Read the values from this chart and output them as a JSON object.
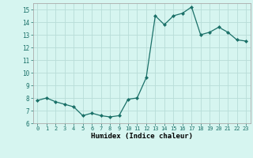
{
  "x": [
    0,
    1,
    2,
    3,
    4,
    5,
    6,
    7,
    8,
    9,
    10,
    11,
    12,
    13,
    14,
    15,
    16,
    17,
    18,
    19,
    20,
    21,
    22,
    23
  ],
  "y": [
    7.8,
    8.0,
    7.7,
    7.5,
    7.3,
    6.6,
    6.8,
    6.6,
    6.5,
    6.6,
    7.9,
    8.0,
    9.6,
    14.5,
    13.8,
    14.5,
    14.7,
    15.2,
    13.0,
    13.2,
    13.6,
    13.2,
    12.6,
    12.5
  ],
  "xlim": [
    -0.5,
    23.5
  ],
  "ylim": [
    6,
    15.5
  ],
  "yticks": [
    6,
    7,
    8,
    9,
    10,
    11,
    12,
    13,
    14,
    15
  ],
  "xticks": [
    0,
    1,
    2,
    3,
    4,
    5,
    6,
    7,
    8,
    9,
    10,
    11,
    12,
    13,
    14,
    15,
    16,
    17,
    18,
    19,
    20,
    21,
    22,
    23
  ],
  "xlabel": "Humidex (Indice chaleur)",
  "line_color": "#1a7068",
  "marker": "D",
  "marker_size": 2.0,
  "bg_color": "#d6f5f0",
  "grid_color": "#b8ddd8",
  "spine_color": "#aaaaaa"
}
